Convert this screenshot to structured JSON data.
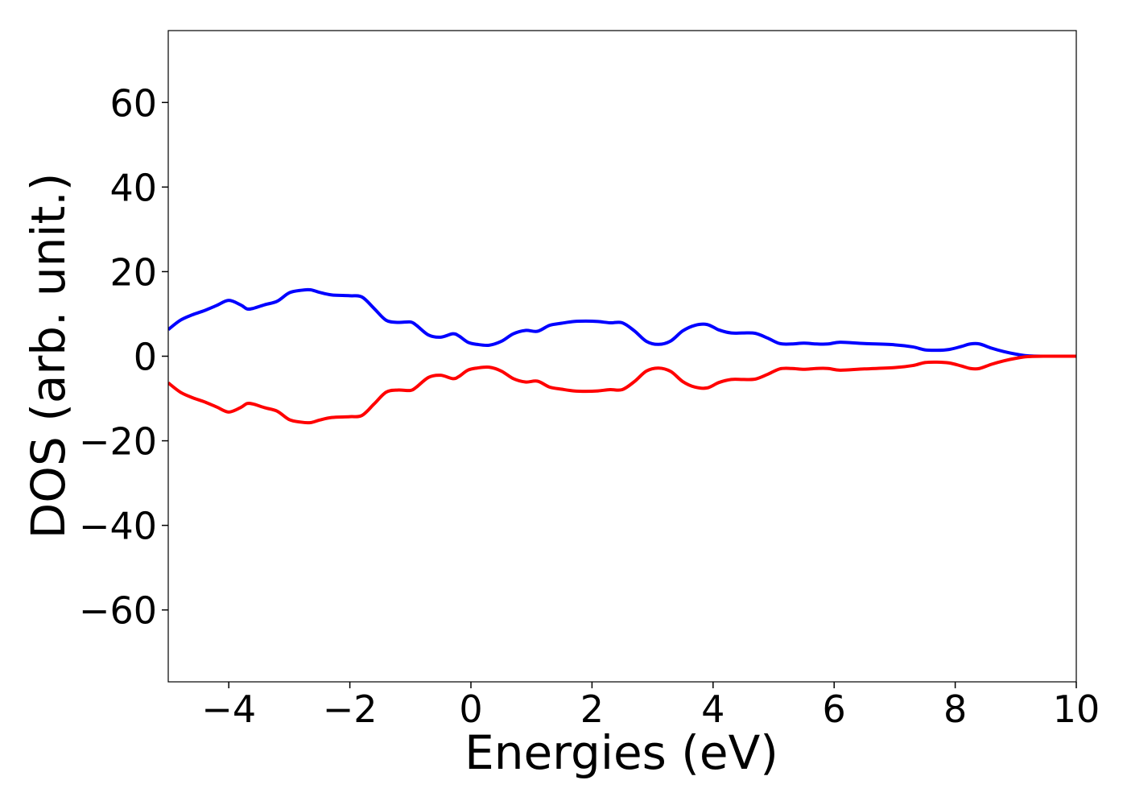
{
  "chart_data": {
    "type": "line",
    "title": "",
    "xlabel": "Energies (eV)",
    "ylabel": "DOS (arb. unit.)",
    "xlim": [
      -5,
      10
    ],
    "ylim": [
      -77,
      77
    ],
    "x_ticks": [
      -4,
      -2,
      0,
      2,
      4,
      6,
      8,
      10
    ],
    "x_tick_labels": [
      "−4",
      "−2",
      "0",
      "2",
      "4",
      "6",
      "8",
      "10"
    ],
    "y_ticks": [
      60,
      40,
      20,
      0,
      -20,
      -40,
      -60
    ],
    "y_tick_labels": [
      "60",
      "40",
      "20",
      "0",
      "−20",
      "−40",
      "−60"
    ],
    "grid": false,
    "legend": "none",
    "series": [
      {
        "color": "#0000ff",
        "x": [
          -5.0,
          -4.8,
          -4.6,
          -4.4,
          -4.2,
          -4.0,
          -3.8,
          -3.7,
          -3.6,
          -3.4,
          -3.2,
          -3.0,
          -2.8,
          -2.65,
          -2.5,
          -2.3,
          -2.0,
          -1.8,
          -1.6,
          -1.4,
          -1.2,
          -1.0,
          -0.9,
          -0.7,
          -0.5,
          -0.3,
          -0.2,
          -0.05,
          0.1,
          0.3,
          0.5,
          0.7,
          0.9,
          1.1,
          1.3,
          1.5,
          1.7,
          1.9,
          2.1,
          2.3,
          2.5,
          2.7,
          2.9,
          3.1,
          3.3,
          3.5,
          3.7,
          3.9,
          4.1,
          4.3,
          4.5,
          4.7,
          4.9,
          5.1,
          5.3,
          5.5,
          5.7,
          5.9,
          6.1,
          6.5,
          7.0,
          7.3,
          7.5,
          7.7,
          7.9,
          8.1,
          8.25,
          8.4,
          8.6,
          8.8,
          9.0,
          9.2,
          9.5,
          10.0
        ],
        "y": [
          6.3,
          8.5,
          9.8,
          10.8,
          12.0,
          13.2,
          12.1,
          11.2,
          11.3,
          12.2,
          13.0,
          15.0,
          15.6,
          15.7,
          15.1,
          14.5,
          14.3,
          14.0,
          11.3,
          8.5,
          8.0,
          8.1,
          7.3,
          5.0,
          4.5,
          5.3,
          4.8,
          3.3,
          2.8,
          2.6,
          3.5,
          5.3,
          6.1,
          5.9,
          7.3,
          7.8,
          8.2,
          8.3,
          8.2,
          7.9,
          7.9,
          6.0,
          3.5,
          2.8,
          3.6,
          6.0,
          7.3,
          7.5,
          6.2,
          5.5,
          5.5,
          5.4,
          4.3,
          3.0,
          2.9,
          3.1,
          2.9,
          2.9,
          3.3,
          3.0,
          2.7,
          2.2,
          1.5,
          1.4,
          1.6,
          2.3,
          2.9,
          2.9,
          1.9,
          1.1,
          0.5,
          0.1,
          0.0,
          0.0
        ]
      },
      {
        "color": "#ff0000",
        "x": [
          -5.0,
          -4.8,
          -4.6,
          -4.4,
          -4.2,
          -4.0,
          -3.8,
          -3.7,
          -3.6,
          -3.4,
          -3.2,
          -3.0,
          -2.8,
          -2.65,
          -2.5,
          -2.3,
          -2.0,
          -1.8,
          -1.6,
          -1.4,
          -1.2,
          -1.0,
          -0.9,
          -0.7,
          -0.5,
          -0.3,
          -0.2,
          -0.05,
          0.1,
          0.3,
          0.5,
          0.7,
          0.9,
          1.1,
          1.3,
          1.5,
          1.7,
          1.9,
          2.1,
          2.3,
          2.5,
          2.7,
          2.9,
          3.1,
          3.3,
          3.5,
          3.7,
          3.9,
          4.1,
          4.3,
          4.5,
          4.7,
          4.9,
          5.1,
          5.3,
          5.5,
          5.7,
          5.9,
          6.1,
          6.5,
          7.0,
          7.3,
          7.5,
          7.7,
          7.9,
          8.1,
          8.25,
          8.4,
          8.6,
          8.8,
          9.0,
          9.2,
          9.5,
          10.0
        ],
        "y": [
          -6.3,
          -8.5,
          -9.8,
          -10.8,
          -12.0,
          -13.2,
          -12.1,
          -11.2,
          -11.3,
          -12.2,
          -13.0,
          -15.0,
          -15.6,
          -15.7,
          -15.1,
          -14.5,
          -14.3,
          -14.0,
          -11.3,
          -8.5,
          -8.0,
          -8.1,
          -7.3,
          -5.0,
          -4.5,
          -5.3,
          -4.8,
          -3.3,
          -2.8,
          -2.6,
          -3.5,
          -5.3,
          -6.1,
          -5.9,
          -7.3,
          -7.8,
          -8.2,
          -8.3,
          -8.2,
          -7.9,
          -7.9,
          -6.0,
          -3.5,
          -2.8,
          -3.6,
          -6.0,
          -7.3,
          -7.5,
          -6.2,
          -5.5,
          -5.5,
          -5.4,
          -4.3,
          -3.0,
          -2.9,
          -3.1,
          -2.9,
          -2.9,
          -3.3,
          -3.0,
          -2.7,
          -2.2,
          -1.5,
          -1.4,
          -1.6,
          -2.3,
          -2.9,
          -2.9,
          -1.9,
          -1.1,
          -0.5,
          -0.1,
          0.0,
          0.0
        ]
      }
    ]
  }
}
